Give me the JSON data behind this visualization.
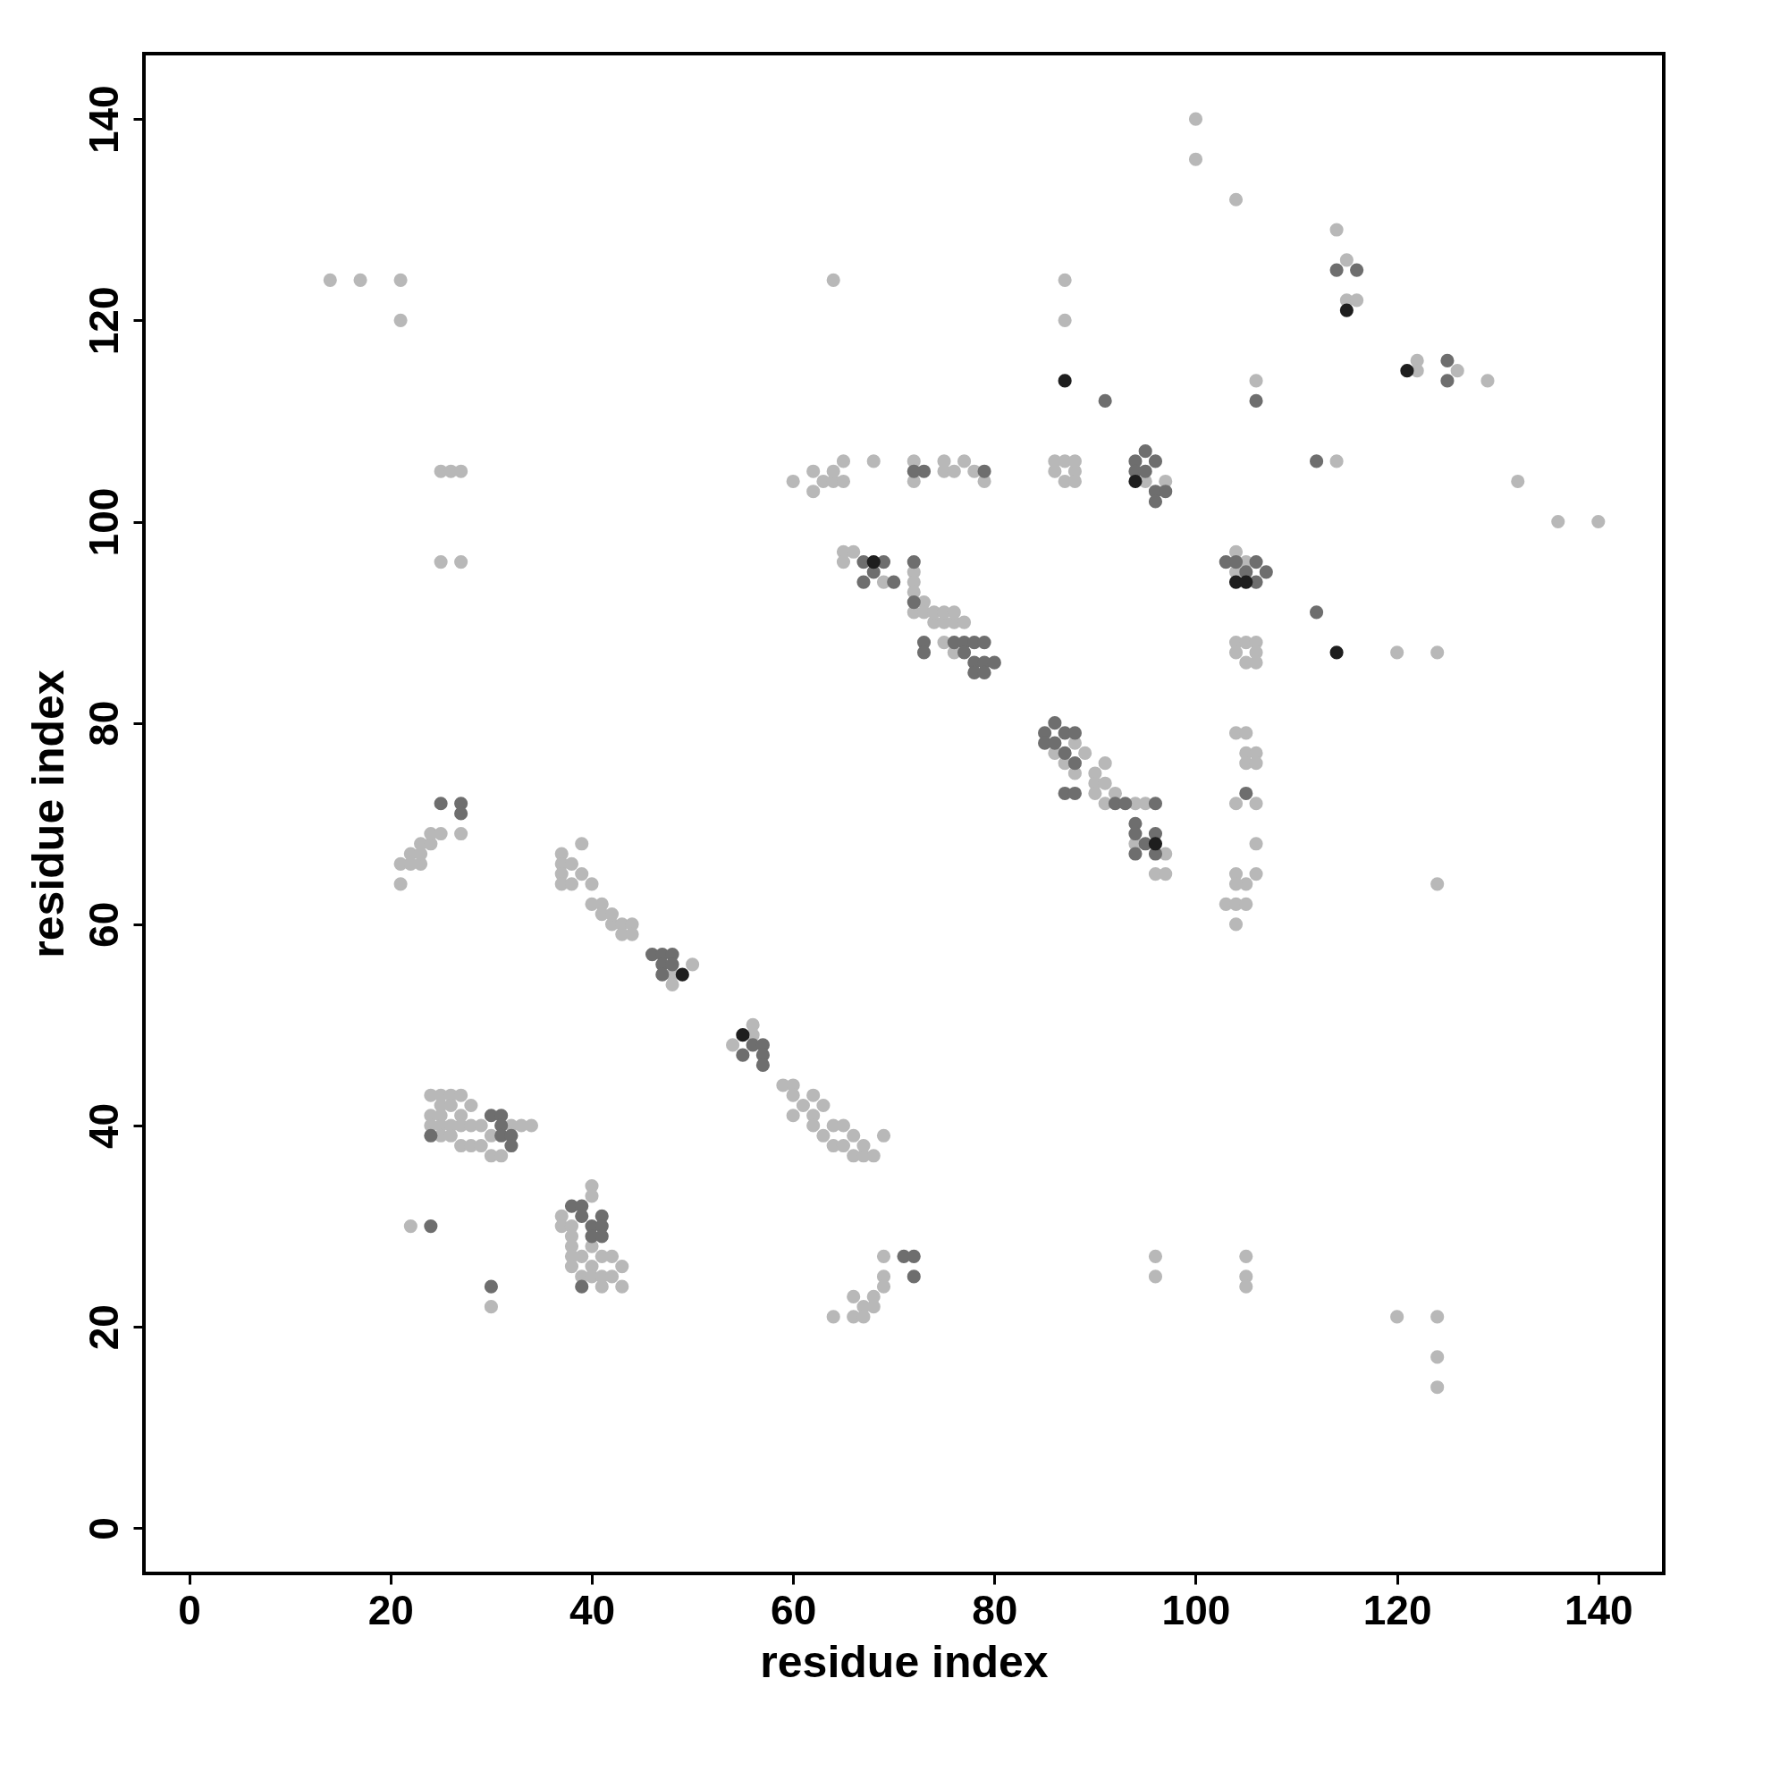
{
  "chart_data": {
    "type": "scatter",
    "xlabel": "residue index",
    "ylabel": "residue index",
    "xlim": [
      -4.5,
      146.5
    ],
    "ylim": [
      -4.5,
      146.5
    ],
    "xticks": [
      0,
      20,
      40,
      60,
      80,
      100,
      120,
      140
    ],
    "yticks": [
      0,
      20,
      40,
      60,
      80,
      100,
      120,
      140
    ],
    "marker": "circle",
    "grid": false,
    "series": [
      {
        "color": "#b8b8b8",
        "x": [
          14,
          17,
          21,
          21,
          64,
          87,
          87,
          100,
          100,
          104,
          114,
          115,
          115,
          116,
          106,
          122,
          122,
          126,
          129,
          25,
          26,
          27,
          25,
          27,
          60,
          62,
          62,
          63,
          64,
          64,
          65,
          65,
          68,
          72,
          72,
          75,
          75,
          76,
          77,
          78,
          79,
          86,
          86,
          87,
          87,
          88,
          88,
          88,
          95,
          97,
          114,
          132,
          136,
          140,
          65,
          65,
          66,
          69,
          72,
          72,
          72,
          72,
          73,
          73,
          74,
          74,
          75,
          75,
          76,
          76,
          77,
          75,
          76,
          104,
          104,
          105,
          104,
          104,
          105,
          105,
          106,
          106,
          106,
          120,
          124,
          104,
          105,
          105,
          105,
          106,
          106,
          104,
          106,
          106,
          104,
          105,
          104,
          106,
          103,
          104,
          105,
          104,
          124,
          86,
          87,
          88,
          88,
          89,
          90,
          90,
          90,
          91,
          91,
          91,
          92,
          94,
          95,
          96,
          97,
          97,
          94,
          22,
          23,
          23,
          24,
          24,
          25,
          27,
          21,
          21,
          22,
          23,
          37,
          37,
          37,
          37,
          38,
          38,
          39,
          39,
          40,
          40,
          41,
          41,
          42,
          42,
          43,
          43,
          44,
          44,
          48,
          48,
          50,
          54,
          56,
          56,
          59,
          60,
          60,
          60,
          61,
          62,
          62,
          62,
          63,
          63,
          64,
          64,
          65,
          65,
          66,
          66,
          67,
          67,
          68,
          69,
          24,
          25,
          26,
          27,
          24,
          24,
          25,
          25,
          25,
          25,
          26,
          26,
          26,
          27,
          27,
          27,
          28,
          28,
          28,
          29,
          29,
          30,
          30,
          31,
          32,
          33,
          34,
          37,
          37,
          38,
          38,
          38,
          38,
          38,
          39,
          39,
          40,
          40,
          40,
          40,
          40,
          41,
          41,
          41,
          42,
          42,
          43,
          43,
          22,
          30,
          64,
          66,
          66,
          67,
          67,
          68,
          68,
          69,
          69,
          69,
          96,
          96,
          105,
          105,
          105,
          120,
          124,
          124,
          124
        ],
        "values": [
          124,
          124,
          124,
          120,
          124,
          124,
          120,
          140,
          136,
          132,
          129,
          126,
          122,
          122,
          114,
          116,
          115,
          115,
          114,
          105,
          105,
          105,
          96,
          96,
          104,
          103,
          105,
          104,
          104,
          105,
          104,
          106,
          106,
          106,
          104,
          105,
          106,
          105,
          106,
          105,
          104,
          105,
          106,
          104,
          106,
          105,
          104,
          106,
          104,
          104,
          106,
          104,
          100,
          100,
          97,
          96,
          97,
          94,
          95,
          94,
          93,
          91,
          92,
          91,
          90,
          91,
          90,
          91,
          90,
          91,
          90,
          88,
          87,
          97,
          95,
          96,
          88,
          87,
          88,
          86,
          88,
          87,
          86,
          87,
          87,
          79,
          79,
          77,
          76,
          77,
          76,
          72,
          72,
          68,
          65,
          64,
          64,
          65,
          62,
          62,
          62,
          60,
          64,
          77,
          76,
          75,
          78,
          77,
          75,
          74,
          73,
          76,
          74,
          72,
          73,
          72,
          72,
          65,
          65,
          67,
          68,
          67,
          66,
          68,
          68,
          69,
          69,
          69,
          64,
          66,
          66,
          67,
          67,
          66,
          65,
          64,
          66,
          64,
          68,
          65,
          64,
          62,
          62,
          61,
          60,
          61,
          60,
          59,
          60,
          59,
          55,
          54,
          56,
          48,
          50,
          49,
          44,
          44,
          43,
          41,
          42,
          43,
          41,
          40,
          42,
          39,
          40,
          38,
          40,
          38,
          39,
          37,
          37,
          38,
          37,
          39,
          43,
          43,
          43,
          43,
          41,
          40,
          42,
          41,
          40,
          39,
          42,
          40,
          39,
          41,
          40,
          38,
          42,
          40,
          38,
          40,
          38,
          39,
          37,
          37,
          40,
          40,
          40,
          31,
          30,
          30,
          29,
          28,
          27,
          26,
          27,
          25,
          34,
          33,
          28,
          26,
          25,
          27,
          25,
          24,
          27,
          25,
          26,
          24,
          30,
          22,
          21,
          21,
          23,
          22,
          21,
          22,
          23,
          25,
          24,
          27,
          27,
          25,
          27,
          25,
          24,
          21,
          21,
          17,
          14
        ]
      },
      {
        "color": "#6e6e6e",
        "x": [
          114,
          116,
          106,
          91,
          125,
          125,
          112,
          94,
          95,
          96,
          94,
          95,
          96,
          96,
          97,
          73,
          72,
          79,
          67,
          68,
          67,
          69,
          70,
          72,
          72,
          73,
          73,
          76,
          77,
          77,
          78,
          78,
          78,
          79,
          79,
          79,
          80,
          103,
          104,
          105,
          106,
          106,
          107,
          112,
          85,
          85,
          86,
          86,
          87,
          87,
          88,
          88,
          87,
          88,
          92,
          93,
          96,
          94,
          94,
          94,
          95,
          96,
          96,
          105,
          25,
          27,
          27,
          46,
          47,
          47,
          47,
          48,
          48,
          55,
          56,
          57,
          57,
          57,
          24,
          30,
          31,
          31,
          31,
          32,
          32,
          38,
          39,
          39,
          40,
          40,
          41,
          41,
          41,
          39,
          24,
          30,
          71,
          72,
          72
        ],
        "values": [
          125,
          125,
          112,
          112,
          116,
          114,
          106,
          106,
          107,
          106,
          105,
          105,
          103,
          102,
          103,
          105,
          105,
          105,
          96,
          95,
          94,
          96,
          94,
          96,
          92,
          88,
          87,
          88,
          88,
          87,
          88,
          86,
          85,
          88,
          86,
          85,
          86,
          96,
          96,
          95,
          96,
          94,
          95,
          91,
          79,
          78,
          80,
          78,
          79,
          77,
          79,
          76,
          73,
          73,
          72,
          72,
          72,
          70,
          69,
          67,
          68,
          69,
          67,
          73,
          72,
          72,
          71,
          57,
          57,
          56,
          55,
          57,
          56,
          47,
          48,
          48,
          47,
          46,
          39,
          41,
          41,
          40,
          39,
          39,
          38,
          32,
          32,
          31,
          30,
          29,
          31,
          30,
          29,
          24,
          30,
          24,
          27,
          27,
          25
        ]
      },
      {
        "color": "#1e1e1e",
        "x": [
          87,
          115,
          121,
          94,
          68,
          114,
          104,
          105,
          96,
          49,
          55
        ],
        "values": [
          114,
          121,
          115,
          104,
          96,
          87,
          94,
          94,
          68,
          55,
          49
        ]
      }
    ]
  }
}
